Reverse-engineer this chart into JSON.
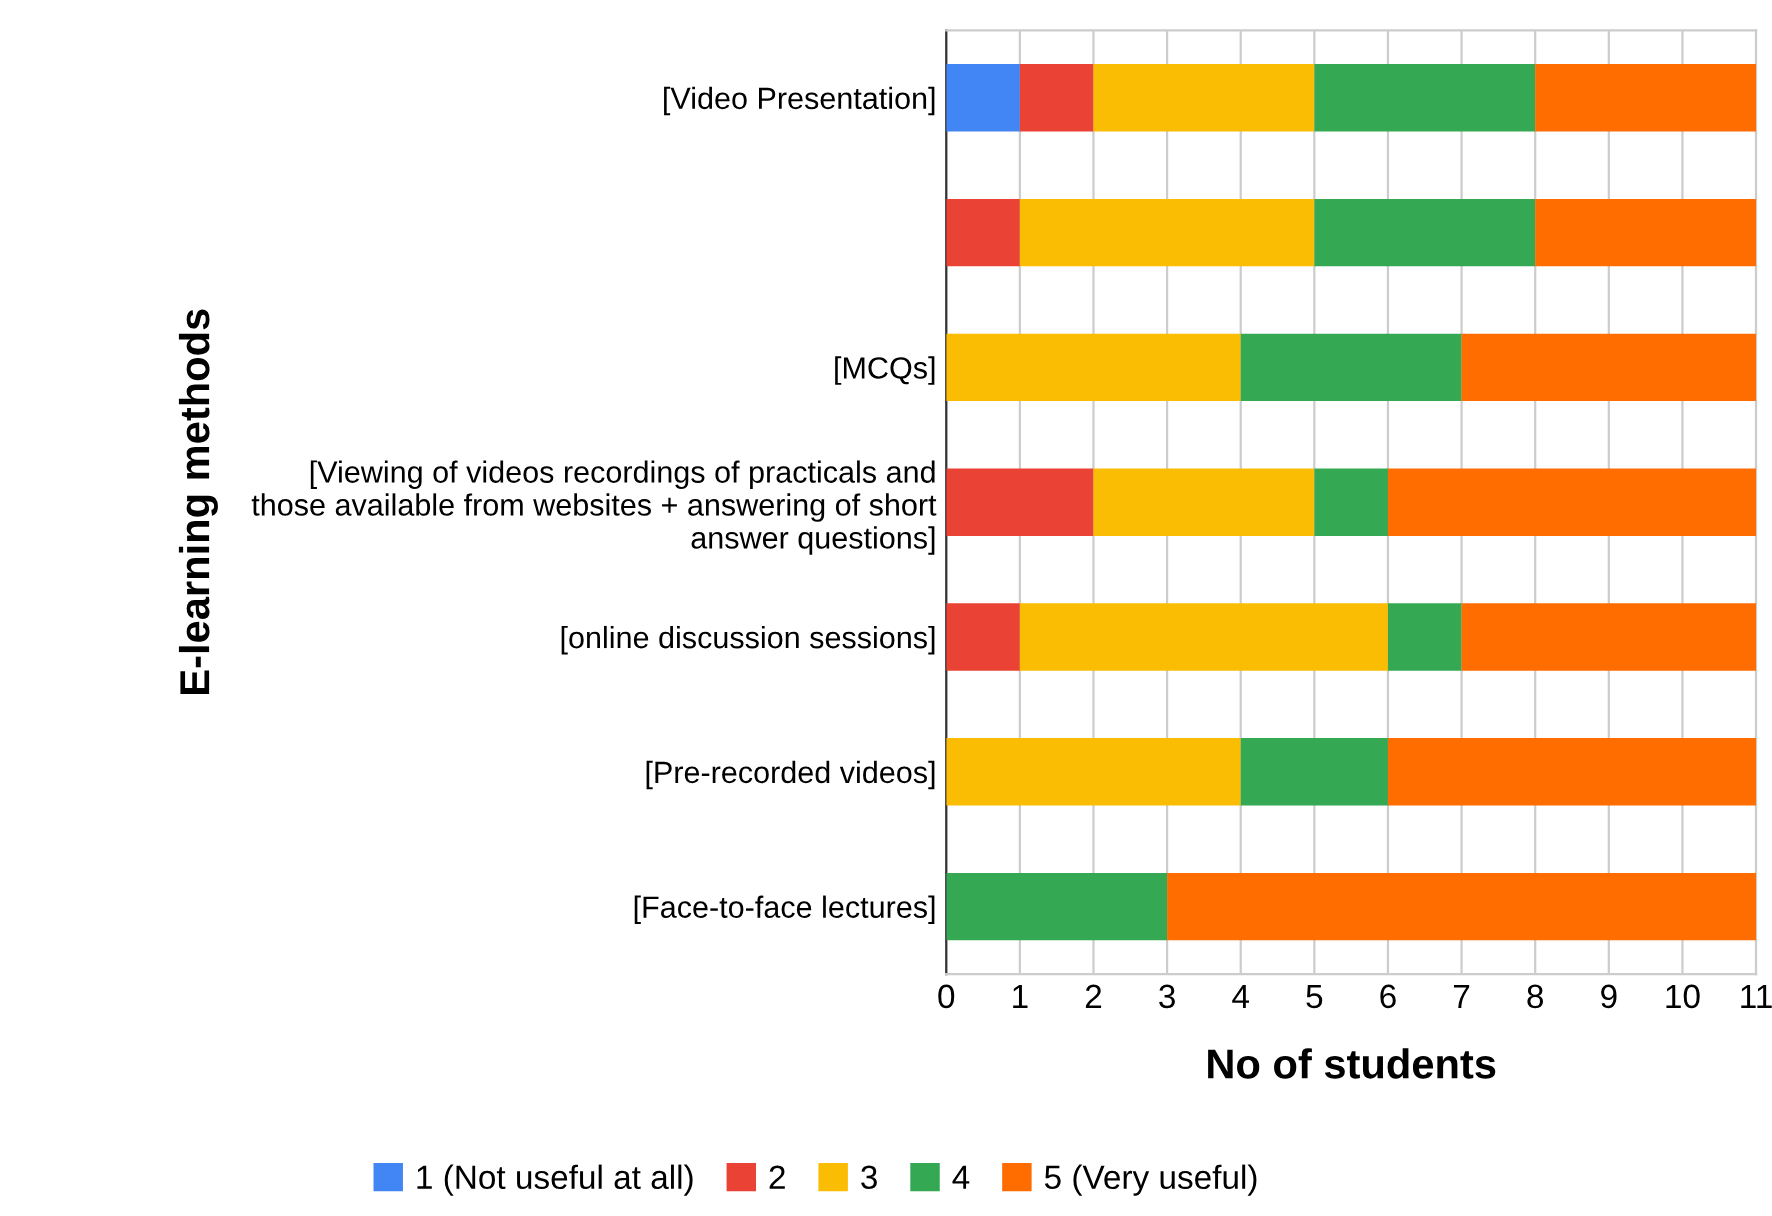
{
  "chart_data": {
    "type": "bar",
    "orientation": "horizontal",
    "stacked": true,
    "categories": [
      "[Video Presentation]",
      null,
      "[MCQs]",
      "[Viewing of videos recordings of practicals and those available from websites + answering of short answer questions]",
      "[online discussion sessions]",
      "[Pre-recorded videos]",
      "[Face-to-face lectures]"
    ],
    "series": [
      {
        "name": "1 (Not useful at all)",
        "color": "#4285f4",
        "values": [
          1,
          null,
          null,
          null,
          null,
          null,
          null
        ]
      },
      {
        "name": "2",
        "color": "#ea4335",
        "values": [
          1,
          1,
          null,
          2,
          1,
          null,
          null
        ]
      },
      {
        "name": "3",
        "color": "#fbbc04",
        "values": [
          3,
          4,
          4,
          3,
          5,
          4,
          null
        ]
      },
      {
        "name": "4",
        "color": "#34a853",
        "values": [
          3,
          3,
          3,
          1,
          1,
          2,
          3
        ]
      },
      {
        "name": "5 (Very useful)",
        "color": "#ff6d01",
        "values": [
          3,
          3,
          4,
          5,
          4,
          5,
          8
        ]
      }
    ],
    "xlim": [
      0,
      11
    ],
    "xticks": [
      0,
      1,
      2,
      3,
      4,
      5,
      6,
      7,
      8,
      9,
      10,
      11
    ],
    "xlabel": "No of students",
    "ylabel": "E-learning methods",
    "grid": "x",
    "legend": "bottom"
  }
}
